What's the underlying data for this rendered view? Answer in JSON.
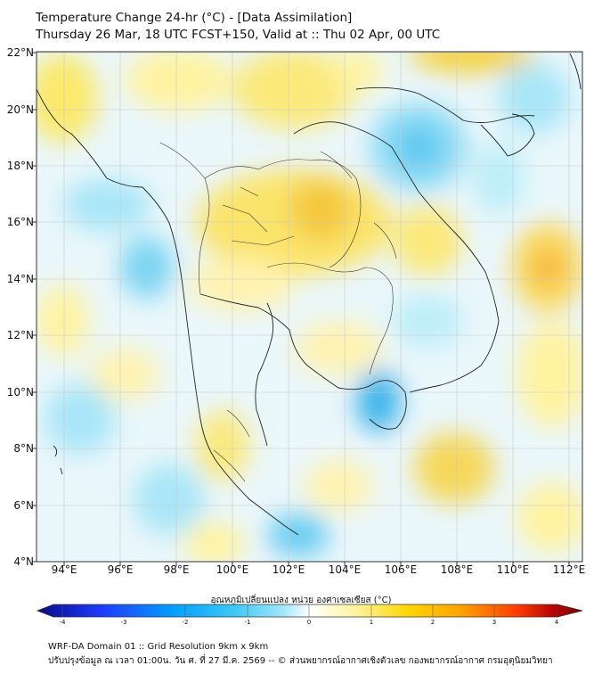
{
  "title_line1": "Temperature Change 24-hr (°C) - [Data Assimilation]",
  "title_line2": "Thursday 26 Mar, 18 UTC FCST+150, Valid at :: Thu 02 Apr, 00 UTC",
  "lat_labels": [
    "22°N",
    "20°N",
    "18°N",
    "16°N",
    "14°N",
    "12°N",
    "10°N",
    "8°N",
    "6°N",
    "4°N"
  ],
  "lon_labels": [
    "94°E",
    "96°E",
    "98°E",
    "100°E",
    "102°E",
    "104°E",
    "106°E",
    "108°E",
    "110°E",
    "112°E"
  ],
  "colorbar": {
    "label": "อุณหภูมิเปลี่ยนแปลง หน่วย องศาเซลเซียส (°C)",
    "ticks": [
      "-4",
      "-3",
      "-2",
      "-1",
      "0",
      "1",
      "2",
      "3",
      "4"
    ],
    "colors": [
      "#0a0a8c",
      "#1e3cff",
      "#00a0ff",
      "#3cc8f5",
      "#a0e6fa",
      "#ffffff",
      "#fff5a0",
      "#ffd700",
      "#ffa000",
      "#ff3c00",
      "#b40000",
      "#780000"
    ]
  },
  "footer_line1": "WRF-DA Domain 01 :: Grid Resolution 9km x 9km",
  "footer_line2": "ปรับปรุงข้อมูล ณ เวลา 01:00น. วัน ศ. ที่ 27 มี.ค. 2569 -- © ส่วนพยากรณ์อากาศเชิงตัวเลข กองพยากรณ์อากาศ กรมอุตุนิยมวิทยา",
  "icons": [
    "coastline-map",
    "country-borders"
  ]
}
